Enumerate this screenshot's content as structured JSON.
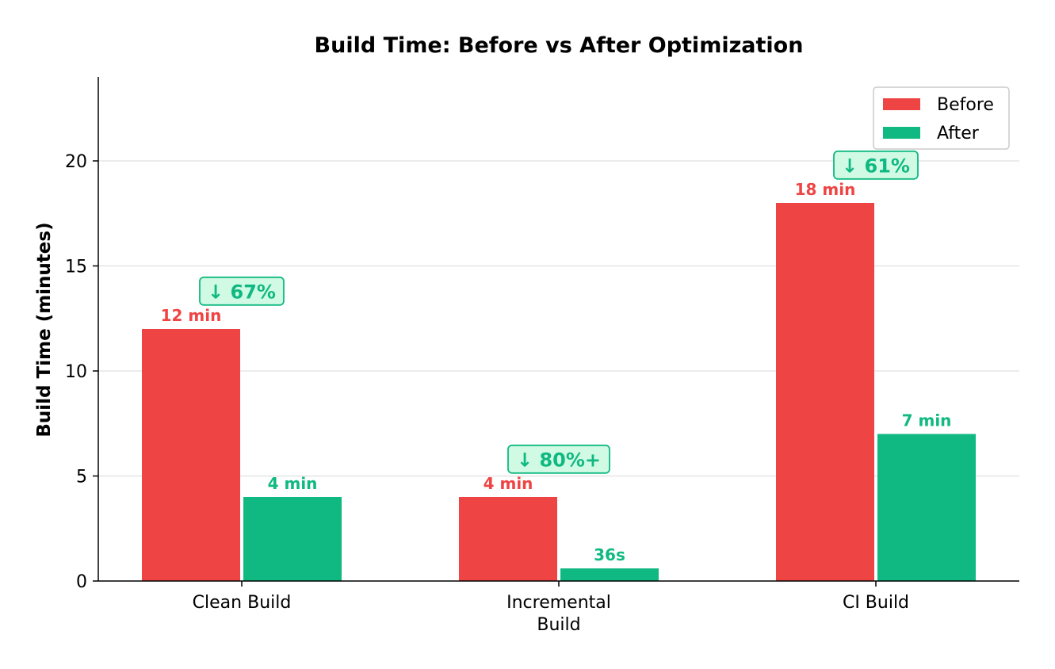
{
  "chart_data": {
    "type": "bar",
    "title": "Build Time: Before vs After Optimization",
    "ylabel": "Build Time (minutes)",
    "xlabel": "",
    "ylim": [
      0,
      24
    ],
    "yticks": [
      0,
      5,
      10,
      15,
      20
    ],
    "grid": "horizontal",
    "legend_position": "top-right",
    "categories": [
      [
        "Clean Build"
      ],
      [
        "Incremental",
        "Build"
      ],
      [
        "CI Build"
      ]
    ],
    "series": [
      {
        "name": "Before",
        "color": "#ef4444",
        "values": [
          12,
          4,
          18
        ],
        "labels": [
          "12 min",
          "4 min",
          "18 min"
        ]
      },
      {
        "name": "After",
        "color": "#10b981",
        "values": [
          4,
          0.6,
          7
        ],
        "labels": [
          "4 min",
          "36s",
          "7 min"
        ]
      }
    ],
    "annotations": [
      {
        "text": "↓ 67%",
        "y": 13.8
      },
      {
        "text": "↓ 80%+",
        "y": 5.8
      },
      {
        "text": "↓ 61%",
        "y": 19.8
      }
    ],
    "annotation_colors": {
      "fill": "#d1fae5",
      "stroke": "#10b981",
      "text": "#10b981"
    }
  }
}
